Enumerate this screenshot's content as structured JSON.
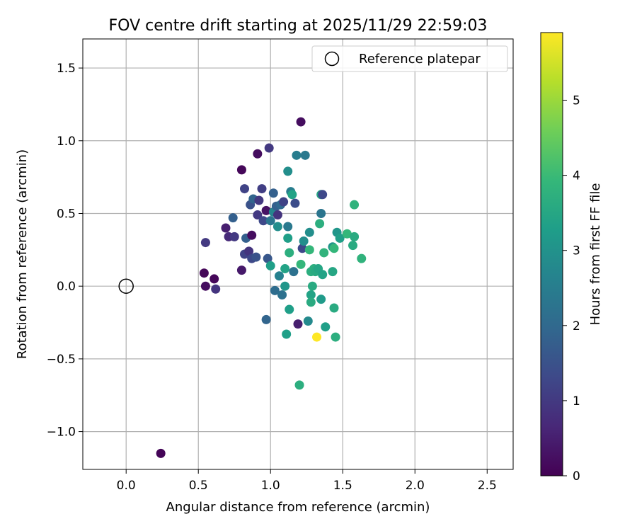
{
  "chart_data": {
    "type": "scatter",
    "title": "FOV centre drift starting at 2025/11/29 22:59:03",
    "xlabel": "Angular distance from reference (arcmin)",
    "ylabel": "Rotation from reference (arcmin)",
    "xlim": [
      -0.3,
      2.68
    ],
    "ylim": [
      -1.26,
      1.7
    ],
    "xticks": [
      0.0,
      0.5,
      1.0,
      1.5,
      2.0,
      2.5
    ],
    "xtick_labels": [
      "0.0",
      "0.5",
      "1.0",
      "1.5",
      "2.0",
      "2.5"
    ],
    "yticks": [
      -1.0,
      -0.5,
      0.0,
      0.5,
      1.0,
      1.5
    ],
    "ytick_labels": [
      "−1.0",
      "−0.5",
      "0.0",
      "0.5",
      "1.0",
      "1.5"
    ],
    "grid": true,
    "legend": {
      "placement": "top-right",
      "entries": [
        "Reference platepar"
      ]
    },
    "reference_point": {
      "x": 0.0,
      "y": 0.0,
      "label": "Reference platepar"
    },
    "colorbar": {
      "label": "Hours from first FF file",
      "colormap": "viridis",
      "range": [
        0,
        5.9
      ],
      "ticks": [
        0,
        1,
        2,
        3,
        4,
        5
      ],
      "tick_labels": [
        "0",
        "1",
        "2",
        "3",
        "4",
        "5"
      ],
      "colormap_stops": [
        "#440154",
        "#482878",
        "#3e4989",
        "#31688e",
        "#26828e",
        "#1f9e89",
        "#35b779",
        "#6ece58",
        "#b5de2b",
        "#fde725"
      ]
    },
    "points": [
      {
        "x": 0.24,
        "y": -1.15,
        "t": 0.05
      },
      {
        "x": 0.54,
        "y": 0.09,
        "t": 0.1
      },
      {
        "x": 0.55,
        "y": 0.0,
        "t": 0.2
      },
      {
        "x": 0.61,
        "y": 0.05,
        "t": 0.1
      },
      {
        "x": 0.62,
        "y": -0.02,
        "t": 0.9
      },
      {
        "x": 0.55,
        "y": 0.3,
        "t": 1.0
      },
      {
        "x": 0.69,
        "y": 0.4,
        "t": 0.5
      },
      {
        "x": 0.71,
        "y": 0.34,
        "t": 0.7
      },
      {
        "x": 0.75,
        "y": 0.34,
        "t": 1.0
      },
      {
        "x": 0.74,
        "y": 0.47,
        "t": 1.8
      },
      {
        "x": 0.8,
        "y": 0.8,
        "t": 0.1
      },
      {
        "x": 0.82,
        "y": 0.67,
        "t": 1.2
      },
      {
        "x": 0.8,
        "y": 0.11,
        "t": 0.4
      },
      {
        "x": 0.82,
        "y": 0.22,
        "t": 1.2
      },
      {
        "x": 0.83,
        "y": 0.33,
        "t": 1.8
      },
      {
        "x": 0.85,
        "y": 0.24,
        "t": 0.9
      },
      {
        "x": 0.86,
        "y": 0.56,
        "t": 1.5
      },
      {
        "x": 0.87,
        "y": 0.35,
        "t": 0.2
      },
      {
        "x": 0.87,
        "y": 0.19,
        "t": 1.3
      },
      {
        "x": 0.88,
        "y": 0.6,
        "t": 1.9
      },
      {
        "x": 0.9,
        "y": 0.2,
        "t": 1.5
      },
      {
        "x": 0.91,
        "y": 0.49,
        "t": 1.0
      },
      {
        "x": 0.91,
        "y": 0.91,
        "t": 0.2
      },
      {
        "x": 0.92,
        "y": 0.59,
        "t": 1.0
      },
      {
        "x": 0.94,
        "y": 0.67,
        "t": 1.1
      },
      {
        "x": 0.95,
        "y": 0.45,
        "t": 1.3
      },
      {
        "x": 0.97,
        "y": 0.52,
        "t": 0.3
      },
      {
        "x": 0.98,
        "y": 0.19,
        "t": 1.6
      },
      {
        "x": 0.97,
        "y": -0.23,
        "t": 1.9
      },
      {
        "x": 0.99,
        "y": 0.95,
        "t": 1.0
      },
      {
        "x": 1.0,
        "y": 0.45,
        "t": 2.3
      },
      {
        "x": 1.0,
        "y": 0.14,
        "t": 3.3
      },
      {
        "x": 1.02,
        "y": 0.51,
        "t": 2.7
      },
      {
        "x": 1.02,
        "y": 0.64,
        "t": 1.8
      },
      {
        "x": 1.03,
        "y": -0.03,
        "t": 2.1
      },
      {
        "x": 1.04,
        "y": 0.55,
        "t": 1.8
      },
      {
        "x": 1.05,
        "y": 0.49,
        "t": 0.9
      },
      {
        "x": 1.05,
        "y": 0.41,
        "t": 2.9
      },
      {
        "x": 1.06,
        "y": 0.07,
        "t": 2.6
      },
      {
        "x": 1.07,
        "y": 0.56,
        "t": 2.0
      },
      {
        "x": 1.08,
        "y": -0.06,
        "t": 2.2
      },
      {
        "x": 1.09,
        "y": 0.58,
        "t": 1.2
      },
      {
        "x": 1.1,
        "y": 0.12,
        "t": 3.4
      },
      {
        "x": 1.1,
        "y": 0.0,
        "t": 3.1
      },
      {
        "x": 1.11,
        "y": -0.33,
        "t": 3.3
      },
      {
        "x": 1.12,
        "y": 0.79,
        "t": 2.9
      },
      {
        "x": 1.12,
        "y": 0.41,
        "t": 2.4
      },
      {
        "x": 1.12,
        "y": 0.33,
        "t": 3.3
      },
      {
        "x": 1.13,
        "y": -0.16,
        "t": 3.3
      },
      {
        "x": 1.13,
        "y": 0.23,
        "t": 3.7
      },
      {
        "x": 1.14,
        "y": 0.65,
        "t": 2.5
      },
      {
        "x": 1.15,
        "y": 0.63,
        "t": 3.4
      },
      {
        "x": 1.16,
        "y": 0.1,
        "t": 2.2
      },
      {
        "x": 1.17,
        "y": 0.57,
        "t": 1.4
      },
      {
        "x": 1.18,
        "y": 0.9,
        "t": 2.5
      },
      {
        "x": 1.19,
        "y": -0.26,
        "t": 0.5
      },
      {
        "x": 1.2,
        "y": -0.68,
        "t": 3.7
      },
      {
        "x": 1.21,
        "y": 1.13,
        "t": 0.2
      },
      {
        "x": 1.21,
        "y": 0.15,
        "t": 3.9
      },
      {
        "x": 1.22,
        "y": 0.26,
        "t": 1.3
      },
      {
        "x": 1.23,
        "y": 0.31,
        "t": 2.9
      },
      {
        "x": 1.24,
        "y": 0.9,
        "t": 2.4
      },
      {
        "x": 1.26,
        "y": -0.24,
        "t": 2.8
      },
      {
        "x": 1.27,
        "y": 0.25,
        "t": 3.9
      },
      {
        "x": 1.27,
        "y": 0.37,
        "t": 2.9
      },
      {
        "x": 1.28,
        "y": -0.06,
        "t": 3.4
      },
      {
        "x": 1.28,
        "y": 0.1,
        "t": 3.7
      },
      {
        "x": 1.28,
        "y": -0.11,
        "t": 3.6
      },
      {
        "x": 1.29,
        "y": 0.0,
        "t": 3.6
      },
      {
        "x": 1.3,
        "y": 0.12,
        "t": 3.7
      },
      {
        "x": 1.31,
        "y": 0.1,
        "t": 3.6
      },
      {
        "x": 1.32,
        "y": -0.35,
        "t": 5.9
      },
      {
        "x": 1.33,
        "y": 0.12,
        "t": 3.5
      },
      {
        "x": 1.34,
        "y": 0.43,
        "t": 3.7
      },
      {
        "x": 1.35,
        "y": 0.5,
        "t": 2.3
      },
      {
        "x": 1.35,
        "y": 0.63,
        "t": 3.5
      },
      {
        "x": 1.35,
        "y": -0.09,
        "t": 3.2
      },
      {
        "x": 1.36,
        "y": 0.08,
        "t": 3.4
      },
      {
        "x": 1.36,
        "y": 0.63,
        "t": 1.3
      },
      {
        "x": 1.37,
        "y": 0.23,
        "t": 3.8
      },
      {
        "x": 1.38,
        "y": -0.28,
        "t": 3.3
      },
      {
        "x": 1.43,
        "y": 0.1,
        "t": 3.5
      },
      {
        "x": 1.43,
        "y": 0.27,
        "t": 3.1
      },
      {
        "x": 1.44,
        "y": -0.15,
        "t": 3.6
      },
      {
        "x": 1.44,
        "y": 0.26,
        "t": 3.9
      },
      {
        "x": 1.45,
        "y": -0.35,
        "t": 3.7
      },
      {
        "x": 1.46,
        "y": 0.37,
        "t": 3.1
      },
      {
        "x": 1.48,
        "y": 0.33,
        "t": 3.3
      },
      {
        "x": 1.53,
        "y": 0.36,
        "t": 3.9
      },
      {
        "x": 1.57,
        "y": 0.28,
        "t": 3.6
      },
      {
        "x": 1.58,
        "y": 0.56,
        "t": 3.8
      },
      {
        "x": 1.58,
        "y": 0.34,
        "t": 3.6
      },
      {
        "x": 1.63,
        "y": 0.19,
        "t": 3.8
      }
    ]
  }
}
